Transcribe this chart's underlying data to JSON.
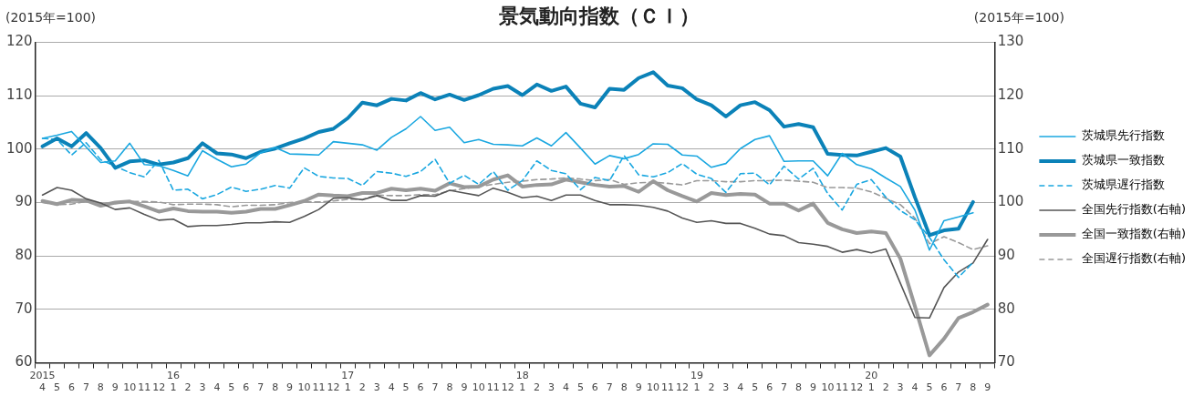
{
  "chart_data": {
    "type": "line",
    "title": "景気動向指数（ＣＩ）",
    "ylabel": "(2015年=100)",
    "y2label": "(2015年=100)",
    "categories": [
      "2015\n4",
      "5",
      "6",
      "7",
      "8",
      "9",
      "10",
      "11",
      "12",
      "16\n1",
      "2",
      "3",
      "4",
      "5",
      "6",
      "7",
      "8",
      "9",
      "10",
      "11",
      "12",
      "17\n1",
      "2",
      "3",
      "4",
      "5",
      "6",
      "7",
      "8",
      "9",
      "10",
      "11",
      "12",
      "18\n1",
      "2",
      "3",
      "4",
      "5",
      "6",
      "7",
      "8",
      "9",
      "10",
      "11",
      "12",
      "19\n1",
      "2",
      "3",
      "4",
      "5",
      "6",
      "7",
      "8",
      "9",
      "10",
      "11",
      "12",
      "20\n1",
      "2",
      "3",
      "4",
      "5",
      "6",
      "7",
      "8",
      "9"
    ],
    "series": [
      {
        "name": "茨城県先行指数",
        "color": "#1aa7e0",
        "line_style": "solid",
        "values": [
          102,
          102.6,
          103.3,
          100.4,
          97.5,
          97.8,
          101.1,
          97.1,
          96.9,
          96,
          95,
          99.7,
          98.1,
          96.7,
          97.2,
          99.3,
          100.3,
          99.1,
          99,
          98.9,
          101.4,
          101.1,
          100.8,
          99.8,
          102.2,
          103.8,
          106.1,
          103.5,
          104.1,
          101.2,
          101.8,
          100.9,
          100.8,
          100.6,
          102.1,
          100.6,
          103.1,
          100.2,
          97.2,
          98.8,
          98.2,
          99,
          101,
          100.9,
          98.9,
          98.7,
          96.6,
          97.3,
          100.1,
          101.8,
          102.5,
          97.7,
          97.8,
          97.8,
          95,
          99.2,
          97.1,
          96.3,
          94.6,
          93,
          88.6,
          81.1,
          86.6,
          87.3,
          88.1,
          null
        ]
      },
      {
        "name": "茨城県一致指数",
        "color": "#0b82b8",
        "line_style": "solid",
        "values": [
          100.5,
          102,
          100.5,
          103,
          100.2,
          96.5,
          97.7,
          97.9,
          97.1,
          97.5,
          98.3,
          101.1,
          99.2,
          99,
          98.3,
          99.5,
          100.1,
          101.1,
          102,
          103.2,
          103.8,
          105.8,
          108.7,
          108.2,
          109.4,
          109.1,
          110.5,
          109.3,
          110.2,
          109.2,
          110.1,
          111.3,
          111.8,
          110.1,
          112.1,
          110.9,
          111.7,
          108.5,
          107.8,
          111.3,
          111.1,
          113.3,
          114.4,
          111.9,
          111.4,
          109.3,
          108.2,
          106.1,
          108.2,
          108.8,
          107.3,
          104.2,
          104.7,
          104.1,
          99.1,
          98.9,
          98.8,
          99.5,
          100.2,
          98.6,
          91,
          83.9,
          84.8,
          85.1,
          90.1,
          null
        ]
      },
      {
        "name": "茨城県遅行指数",
        "color": "#1aa7e0",
        "line_style": "dashed",
        "values": [
          102,
          101.8,
          98.9,
          101.2,
          98,
          96.8,
          95.6,
          94.8,
          97.9,
          92.3,
          92.5,
          90.7,
          91.5,
          92.9,
          92.1,
          92.5,
          93.2,
          92.7,
          96.5,
          94.9,
          94.6,
          94.5,
          93.2,
          95.8,
          95.5,
          94.9,
          95.8,
          98.1,
          93.6,
          95.1,
          93.4,
          95.8,
          92.3,
          94.1,
          97.8,
          96,
          95.4,
          92.4,
          94.7,
          94.1,
          98.8,
          95.2,
          94.8,
          95.6,
          97.3,
          95.3,
          94.5,
          91.9,
          95.4,
          95.5,
          93.3,
          96.8,
          94.4,
          96.4,
          91.7,
          88.6,
          93.4,
          94.3,
          91,
          88.5,
          86.8,
          83.5,
          79.3,
          76,
          78.8,
          null
        ]
      },
      {
        "name": "全国先行指数(右軸)",
        "color": "#555555",
        "line_style": "solid",
        "axis": "y2",
        "values": [
          101.4,
          102.8,
          102.3,
          100.7,
          99.9,
          98.7,
          99,
          97.8,
          96.7,
          96.9,
          95.5,
          95.7,
          95.7,
          95.9,
          96.2,
          96.2,
          96.4,
          96.3,
          97.4,
          98.7,
          100.8,
          100.9,
          100.5,
          101.3,
          100.4,
          100.4,
          101.3,
          101.2,
          102.3,
          101.8,
          101.3,
          102.7,
          101.9,
          100.9,
          101.2,
          100.4,
          101.4,
          101.4,
          100.4,
          99.6,
          99.6,
          99.5,
          99.1,
          98.4,
          97.1,
          96.3,
          96.6,
          96.1,
          96.1,
          95.2,
          94.1,
          93.8,
          92.5,
          92.2,
          91.8,
          90.7,
          91.2,
          90.6,
          91.3,
          84.9,
          78.5,
          78.4,
          84.1,
          87,
          88.7,
          93.1
        ]
      },
      {
        "name": "全国一致指数(右軸)",
        "color": "#999999",
        "line_style": "solid",
        "axis": "y2",
        "values": [
          100.3,
          99.7,
          100.5,
          100.4,
          99.4,
          100,
          100.2,
          99.3,
          98.3,
          98.9,
          98.4,
          98.3,
          98.3,
          98.1,
          98.3,
          98.8,
          98.8,
          99.5,
          100.3,
          101.5,
          101.3,
          101.2,
          101.8,
          101.8,
          102.6,
          102.3,
          102.6,
          102.2,
          103.6,
          102.9,
          103,
          104.3,
          105.1,
          103,
          103.3,
          103.4,
          104.3,
          103.8,
          103.3,
          103,
          103.1,
          102,
          104,
          102.3,
          101.2,
          100.2,
          101.8,
          101.4,
          101.6,
          101.5,
          99.8,
          99.8,
          98.5,
          99.8,
          96.2,
          95,
          94.3,
          94.6,
          94.3,
          89.5,
          80.6,
          71.4,
          74.5,
          78.4,
          79.5,
          80.9
        ]
      },
      {
        "name": "全国遅行指数(右軸)",
        "color": "#999999",
        "line_style": "dashed",
        "axis": "y2",
        "values": [
          100,
          99.6,
          99.7,
          100.2,
          99.8,
          99.8,
          100.2,
          100.2,
          100.1,
          99.6,
          99.7,
          99.7,
          99.6,
          99.2,
          99.5,
          99.5,
          99.6,
          100,
          100.1,
          100.1,
          100.3,
          100.6,
          100.6,
          101.4,
          101.3,
          101.3,
          101.5,
          101.5,
          102.2,
          102.6,
          103,
          103.4,
          103.8,
          104,
          104.3,
          104.4,
          104.6,
          104.4,
          104.1,
          104.3,
          103.4,
          103.7,
          103.8,
          103.6,
          103.3,
          104.1,
          104.1,
          103.9,
          103.9,
          104.1,
          104.1,
          104.2,
          104,
          103.8,
          102.8,
          102.8,
          102.7,
          102,
          100.8,
          99.6,
          97.1,
          92.3,
          93.6,
          92.5,
          91.2,
          91.9
        ]
      }
    ],
    "ylim": [
      60,
      120
    ],
    "yticks": [
      60,
      70,
      80,
      90,
      100,
      110,
      120
    ],
    "y2lim": [
      70,
      130
    ],
    "y2ticks": [
      70,
      80,
      90,
      100,
      110,
      120,
      130
    ],
    "grid": "y",
    "legend": "right",
    "marker": "none"
  }
}
